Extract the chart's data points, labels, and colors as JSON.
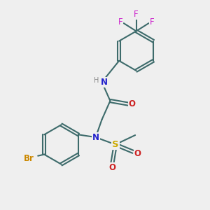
{
  "bg_color": "#efefef",
  "bond_color": "#3d6b6b",
  "bond_width": 1.5,
  "atom_colors": {
    "N": "#2222cc",
    "O": "#cc2222",
    "F": "#cc22cc",
    "Br": "#cc8800",
    "S": "#ccaa00",
    "H": "#888888",
    "C": "#000000"
  },
  "font_size": 8.5,
  "fig_width": 3.0,
  "fig_height": 3.0,
  "dpi": 100
}
